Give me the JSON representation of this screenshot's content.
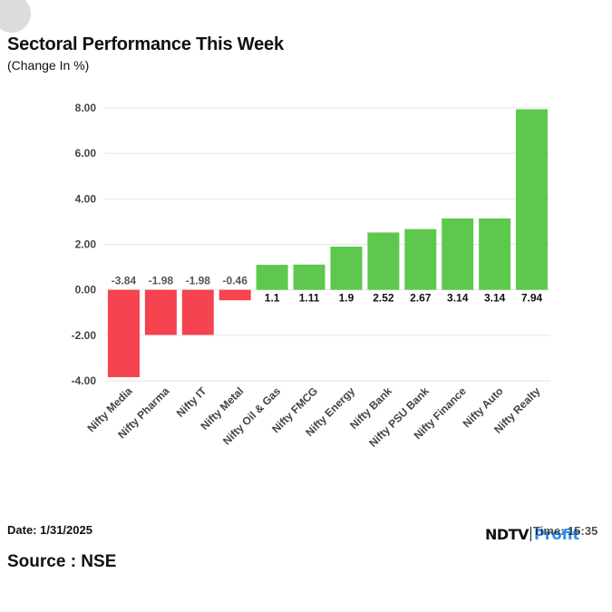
{
  "header": {
    "title": "Sectoral Performance This Week",
    "subtitle": "(Change In %)"
  },
  "footer": {
    "date": "Date: 1/31/2025",
    "source": "Source : NSE",
    "brand_ndtv": "NDTV",
    "brand_profit": "Profit",
    "time_text": "Time: 15:35"
  },
  "colors": {
    "negative": "#f5434f",
    "positive": "#5ec84e",
    "grid": "#e5e5e5",
    "axis_text": "#444444",
    "label_text": "#111111"
  },
  "chart_data": {
    "type": "bar",
    "title": "Sectoral Performance This Week",
    "ylabel": "(Change In %)",
    "xlabel": "",
    "categories": [
      "Nifty Media",
      "Nifty Pharma",
      "Nifty IT",
      "Nifty Metal",
      "Nifty Oil & Gas",
      "Nifty FMCG",
      "Nifty Energy",
      "Nifty Bank",
      "Nifty PSU Bank",
      "Nifty Finance",
      "Nifty Auto",
      "Nifty Realty"
    ],
    "values": [
      -3.84,
      -1.98,
      -1.98,
      -0.46,
      1.1,
      1.11,
      1.9,
      2.52,
      2.67,
      3.14,
      3.14,
      7.94
    ],
    "value_labels": [
      "-3.84",
      "-1.98",
      "-1.98",
      "-0.46",
      "1.1",
      "1.11",
      "1.9",
      "2.52",
      "2.67",
      "3.14",
      "3.14",
      "7.94"
    ],
    "yticks": [
      8,
      6,
      4,
      2,
      0,
      -2,
      -4
    ],
    "ytick_labels": [
      "8.00",
      "6.00",
      "4.00",
      "2.00",
      "0.00",
      "-2.00",
      "-4.00"
    ],
    "ylim": [
      -4,
      8
    ],
    "grid": true,
    "legend": "none"
  }
}
